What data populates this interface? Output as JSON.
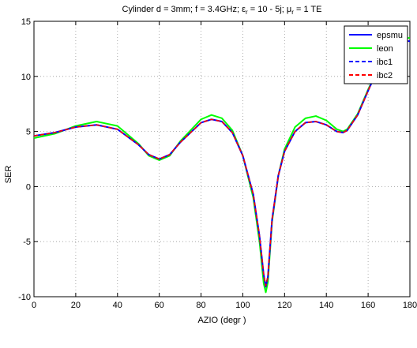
{
  "chart_data": {
    "type": "line",
    "title_parts": {
      "prefix": "Cylinder d = 3mm; f = 3.4GHz; ε",
      "eps_sub": "r",
      "middle": " = 10 - 5j; μ",
      "mu_sub": "r",
      "suffix": " = 1 TE"
    },
    "xlabel": "AZIO (degr )",
    "ylabel": "SER",
    "xlim": [
      0,
      180
    ],
    "ylim": [
      -10,
      15
    ],
    "xticks": [
      "0",
      "20",
      "40",
      "60",
      "80",
      "100",
      "120",
      "140",
      "160",
      "180"
    ],
    "yticks": [
      "-10",
      "-5",
      "0",
      "5",
      "10",
      "15"
    ],
    "grid": true,
    "legend_position": "top-right",
    "series": [
      {
        "name": "epsmu",
        "color": "#0000ff",
        "style": "solid",
        "x": [
          0,
          10,
          20,
          30,
          40,
          50,
          55,
          60,
          65,
          70,
          80,
          85,
          90,
          95,
          100,
          105,
          108,
          110,
          111,
          112,
          114,
          117,
          120,
          125,
          130,
          135,
          140,
          145,
          148,
          150,
          155,
          160,
          165,
          170,
          175,
          180
        ],
        "y": [
          4.6,
          4.9,
          5.4,
          5.6,
          5.2,
          3.8,
          2.9,
          2.5,
          2.9,
          4.0,
          5.8,
          6.1,
          5.9,
          4.9,
          2.8,
          -0.7,
          -4.5,
          -8.0,
          -9.1,
          -8.2,
          -3.0,
          1.0,
          3.2,
          5.0,
          5.8,
          5.9,
          5.6,
          5.0,
          4.9,
          5.1,
          6.5,
          8.7,
          10.8,
          12.4,
          13.2,
          13.2
        ]
      },
      {
        "name": "leon",
        "color": "#00ff00",
        "style": "solid",
        "x": [
          0,
          10,
          20,
          30,
          40,
          50,
          55,
          60,
          65,
          70,
          80,
          85,
          90,
          95,
          100,
          105,
          108,
          110,
          111,
          112,
          114,
          117,
          120,
          125,
          130,
          135,
          140,
          145,
          148,
          150,
          155,
          160,
          165,
          170,
          175,
          180
        ],
        "y": [
          4.4,
          4.8,
          5.5,
          5.9,
          5.5,
          3.9,
          2.8,
          2.4,
          2.8,
          4.1,
          6.1,
          6.5,
          6.2,
          5.1,
          2.8,
          -1.0,
          -5.0,
          -8.8,
          -9.6,
          -8.7,
          -3.2,
          1.0,
          3.4,
          5.4,
          6.2,
          6.4,
          6.0,
          5.2,
          5.0,
          5.2,
          6.6,
          8.8,
          10.9,
          12.6,
          13.4,
          13.5
        ]
      },
      {
        "name": "ibc1",
        "color": "#0000ff",
        "style": "dashed",
        "x": [
          0,
          10,
          20,
          30,
          40,
          50,
          55,
          60,
          65,
          70,
          80,
          85,
          90,
          95,
          100,
          105,
          108,
          110,
          111,
          112,
          114,
          117,
          120,
          125,
          130,
          135,
          140,
          145,
          148,
          150,
          155,
          160,
          165,
          170,
          175,
          180
        ],
        "y": [
          4.6,
          4.9,
          5.4,
          5.6,
          5.2,
          3.8,
          2.9,
          2.5,
          2.9,
          4.0,
          5.8,
          6.1,
          5.9,
          4.9,
          2.8,
          -0.7,
          -4.5,
          -8.0,
          -9.0,
          -8.2,
          -3.0,
          1.0,
          3.2,
          5.0,
          5.8,
          5.9,
          5.6,
          5.0,
          4.9,
          5.1,
          6.5,
          8.7,
          10.8,
          12.4,
          13.2,
          13.2
        ]
      },
      {
        "name": "ibc2",
        "color": "#ff0000",
        "style": "dashed",
        "x": [
          0,
          10,
          20,
          30,
          40,
          50,
          55,
          60,
          65,
          70,
          80,
          85,
          90,
          95,
          100,
          105,
          108,
          110,
          111,
          112,
          114,
          117,
          120,
          125,
          130,
          135,
          140,
          145,
          148,
          150,
          155,
          160,
          165,
          170,
          175,
          180
        ],
        "y": [
          4.6,
          4.9,
          5.4,
          5.6,
          5.2,
          3.8,
          2.9,
          2.5,
          2.9,
          4.0,
          5.8,
          6.1,
          5.9,
          4.9,
          2.8,
          -0.7,
          -4.5,
          -8.0,
          -9.0,
          -8.2,
          -3.0,
          1.0,
          3.2,
          5.0,
          5.8,
          5.9,
          5.6,
          5.0,
          4.9,
          5.1,
          6.5,
          8.7,
          10.8,
          12.4,
          13.2,
          13.2
        ]
      }
    ]
  }
}
